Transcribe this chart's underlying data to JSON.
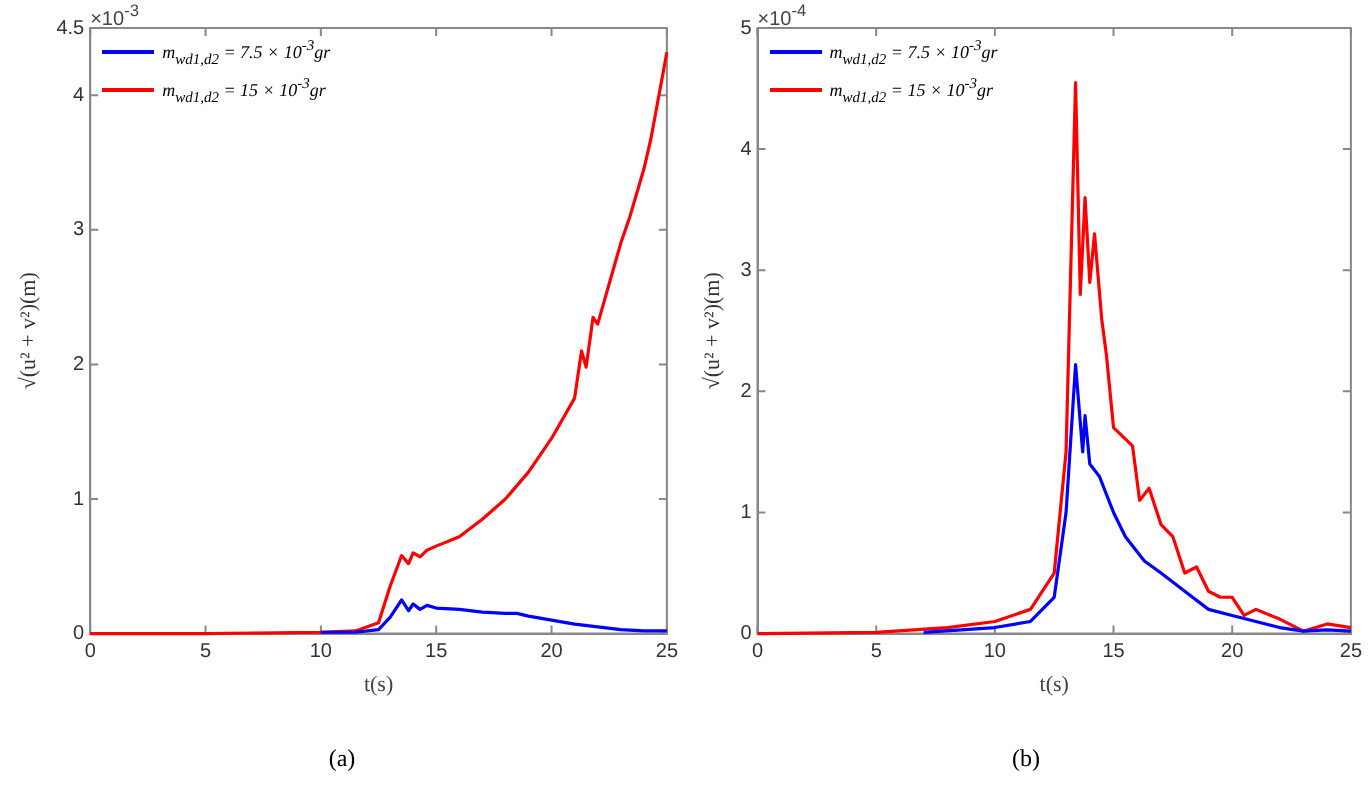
{
  "chart_data": [
    {
      "type": "line",
      "xlabel": "t(s)",
      "ylabel": "√(u² + v²)(m)",
      "annotations": [
        "×10$^{-3}$",
        "(a)"
      ],
      "xlim": [
        0,
        25
      ],
      "xticks": [
        0,
        5,
        10,
        15,
        20,
        25
      ],
      "ylim": [
        0,
        4.5
      ],
      "yticks": [
        0,
        1,
        2,
        3,
        4,
        4.5
      ],
      "grid": false,
      "legend": "top left",
      "marker": "none",
      "line_style": "solid",
      "series": [
        {
          "name": "m$_{wd1,d2}$ = 7.5 × 10$^{-3}$gr",
          "color": "#0000ff",
          "x": [
            10,
            11.5,
            12.5,
            13,
            13.5,
            13.8,
            14,
            14.3,
            14.6,
            15,
            16,
            17,
            18,
            18.5,
            19,
            20,
            21,
            22,
            23,
            24,
            25
          ],
          "values": [
            0.01,
            0.01,
            0.03,
            0.12,
            0.25,
            0.17,
            0.22,
            0.18,
            0.21,
            0.19,
            0.18,
            0.16,
            0.15,
            0.15,
            0.13,
            0.1,
            0.07,
            0.05,
            0.03,
            0.02,
            0.02
          ]
        },
        {
          "name": "m$_{wd1,d2}$ = 15 × 10$^{-3}$gr",
          "color": "#ff0000",
          "x": [
            0,
            5,
            10,
            11.5,
            12.5,
            13,
            13.5,
            13.8,
            14,
            14.3,
            14.6,
            15,
            16,
            17,
            18,
            19,
            20,
            21,
            21.3,
            21.5,
            21.8,
            22,
            22.5,
            23,
            23.4,
            24,
            24.3,
            25
          ],
          "values": [
            0,
            0,
            0.01,
            0.02,
            0.08,
            0.35,
            0.58,
            0.52,
            0.6,
            0.57,
            0.62,
            0.65,
            0.72,
            0.85,
            1.0,
            1.2,
            1.45,
            1.75,
            2.1,
            1.98,
            2.35,
            2.3,
            2.6,
            2.9,
            3.1,
            3.45,
            3.67,
            4.32
          ]
        }
      ]
    },
    {
      "type": "line",
      "xlabel": "t(s)",
      "ylabel": "√(u² + v²)(m)",
      "annotations": [
        "×10$^{-4}$",
        "(b)"
      ],
      "xlim": [
        0,
        25
      ],
      "xticks": [
        0,
        5,
        10,
        15,
        20,
        25
      ],
      "ylim": [
        0,
        5
      ],
      "yticks": [
        0,
        1,
        2,
        3,
        4,
        5
      ],
      "grid": false,
      "legend": "top left",
      "marker": "none",
      "line_style": "solid",
      "series": [
        {
          "name": "m$_{wd1,d2}$ = 7.5 × 10$^{-3}$gr",
          "color": "#0000ff",
          "x": [
            7,
            10,
            11.5,
            12.5,
            13,
            13.4,
            13.7,
            13.8,
            14,
            14.4,
            14.6,
            15,
            15.5,
            16.3,
            17,
            18,
            19,
            20,
            21,
            22,
            23,
            24,
            25
          ],
          "values": [
            0.01,
            0.05,
            0.1,
            0.3,
            1.0,
            2.22,
            1.5,
            1.8,
            1.4,
            1.3,
            1.2,
            1.0,
            0.8,
            0.6,
            0.5,
            0.35,
            0.2,
            0.15,
            0.1,
            0.05,
            0.02,
            0.03,
            0.02
          ]
        },
        {
          "name": "m$_{wd1,d2}$ = 15 × 10$^{-3}$gr",
          "color": "#ff0000",
          "x": [
            0,
            5,
            8,
            10,
            11.5,
            12.5,
            13,
            13.4,
            13.6,
            13.8,
            14,
            14.2,
            14.5,
            14.7,
            15,
            15.8,
            16.1,
            16.5,
            17,
            17.5,
            18,
            18.5,
            19,
            19.5,
            20,
            20.5,
            21,
            22,
            23,
            24,
            25
          ],
          "values": [
            0,
            0.01,
            0.05,
            0.1,
            0.2,
            0.5,
            1.5,
            4.55,
            2.8,
            3.6,
            2.9,
            3.3,
            2.6,
            2.3,
            1.7,
            1.55,
            1.1,
            1.2,
            0.9,
            0.8,
            0.5,
            0.55,
            0.35,
            0.3,
            0.3,
            0.15,
            0.2,
            0.12,
            0.02,
            0.08,
            0.05
          ]
        }
      ]
    }
  ]
}
